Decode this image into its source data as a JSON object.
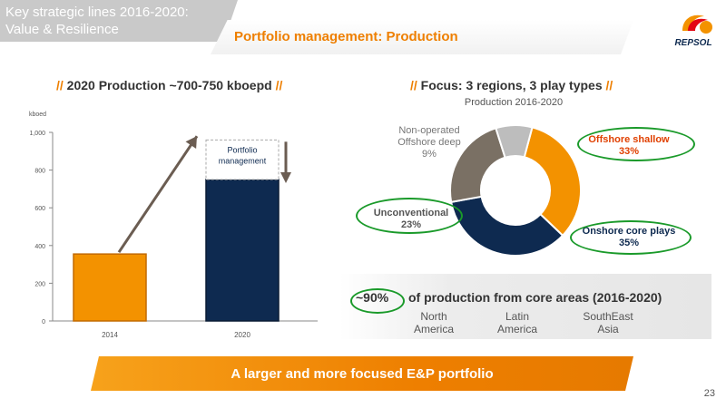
{
  "header": {
    "section_line1": "Key strategic lines 2016-2020:",
    "section_line2": "Value & Resilience",
    "title": "Portfolio management: Production",
    "logo_text": "REPSOL"
  },
  "left_panel": {
    "title_prefix": "//",
    "title": " 2020 Production ~700-750 kboepd ",
    "title_suffix": "//"
  },
  "right_panel": {
    "title_prefix": "//",
    "title": " Focus: 3 regions, 3 play types ",
    "title_suffix": "//"
  },
  "chart_data": [
    {
      "type": "bar",
      "ylabel": "kboed",
      "categories": [
        "2014",
        "2020"
      ],
      "values": [
        355,
        750
      ],
      "ylim": [
        0,
        1000
      ],
      "yticks": [
        "0",
        "200",
        "400",
        "600",
        "800",
        "1,000"
      ],
      "annotation": "Portfolio management",
      "colors": [
        "#f39200",
        "#0e2a50"
      ],
      "grid": false
    },
    {
      "type": "pie",
      "title": "Production 2016-2020",
      "slices": [
        {
          "label": "Offshore shallow",
          "value": 33,
          "pct": "33%",
          "color": "#f39200"
        },
        {
          "label": "Onshore core plays",
          "value": 35,
          "pct": "35%",
          "color": "#0e2a50"
        },
        {
          "label": "Unconventional",
          "value": 23,
          "pct": "23%",
          "color": "#7a7064"
        },
        {
          "label": "Non-operated Offshore deep",
          "value": 9,
          "pct": "9%",
          "color": "#bdbdbd"
        }
      ]
    }
  ],
  "labels": {
    "offshore_shallow": "Offshore shallow",
    "offshore_shallow_pct": "33%",
    "onshore": "Onshore core plays",
    "onshore_pct": "35%",
    "unconventional": "Unconventional",
    "unconventional_pct": "23%",
    "nonop_line1": "Non-operated",
    "nonop_line2": "Offshore deep",
    "nonop_pct": "9%"
  },
  "core": {
    "pct": "~90%",
    "caption": "of production from core areas (2016-2020)",
    "regions": [
      {
        "line1": "North",
        "line2": "America"
      },
      {
        "line1": "Latin",
        "line2": "America"
      },
      {
        "line1": "SouthEast",
        "line2": "Asia"
      }
    ]
  },
  "banner": "A larger and more focused E&P portfolio",
  "page_number": "23",
  "colors": {
    "orange": "#ee7f00",
    "navy": "#0e2a50",
    "green": "#1a9a2a",
    "grey": "#c9c9c9"
  }
}
